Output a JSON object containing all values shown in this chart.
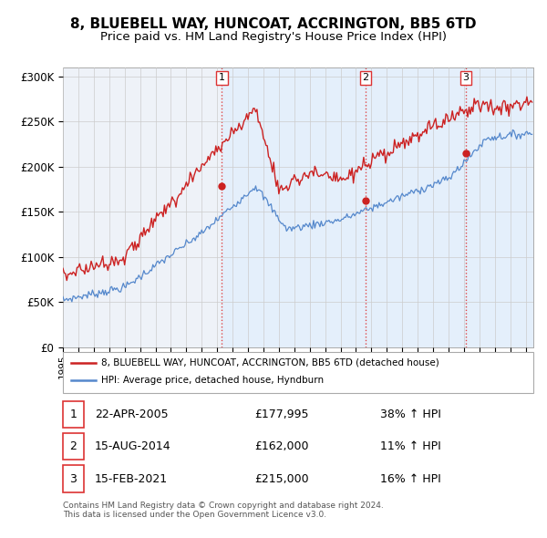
{
  "title": "8, BLUEBELL WAY, HUNCOAT, ACCRINGTON, BB5 6TD",
  "subtitle": "Price paid vs. HM Land Registry's House Price Index (HPI)",
  "title_fontsize": 11,
  "subtitle_fontsize": 9.5,
  "ylabel_ticks": [
    "£0",
    "£50K",
    "£100K",
    "£150K",
    "£200K",
    "£250K",
    "£300K"
  ],
  "ytick_vals": [
    0,
    50000,
    100000,
    150000,
    200000,
    250000,
    300000
  ],
  "ylim": [
    0,
    310000
  ],
  "xlim_start": 1995.0,
  "xlim_end": 2025.5,
  "sale_dates": [
    2005.31,
    2014.62,
    2021.12
  ],
  "sale_prices": [
    177995,
    162000,
    215000
  ],
  "sale_labels": [
    "1",
    "2",
    "3"
  ],
  "red_line_color": "#cc2222",
  "blue_line_color": "#5588cc",
  "marker_color": "#cc2222",
  "vline_color": "#dd3333",
  "shade_color": "#ddeeff",
  "bg_color": "#f0f4f8",
  "legend_red_label": "8, BLUEBELL WAY, HUNCOAT, ACCRINGTON, BB5 6TD (detached house)",
  "legend_blue_label": "HPI: Average price, detached house, Hyndburn",
  "table_rows": [
    [
      "1",
      "22-APR-2005",
      "£177,995",
      "38% ↑ HPI"
    ],
    [
      "2",
      "15-AUG-2014",
      "£162,000",
      "11% ↑ HPI"
    ],
    [
      "3",
      "15-FEB-2021",
      "£215,000",
      "16% ↑ HPI"
    ]
  ],
  "footnote": "Contains HM Land Registry data © Crown copyright and database right 2024.\nThis data is licensed under the Open Government Licence v3.0.",
  "background_color": "#ffffff",
  "grid_color": "#cccccc",
  "chart_bg": "#eef2f8"
}
